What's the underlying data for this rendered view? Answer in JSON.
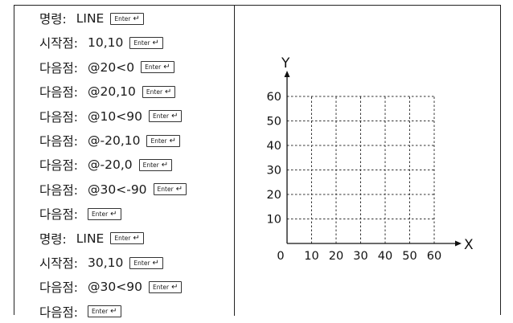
{
  "commands": [
    {
      "label": "명령:",
      "value": "LINE",
      "key": "Enter"
    },
    {
      "label": "시작점:",
      "value": "10,10",
      "key": "Enter"
    },
    {
      "label": "다음점:",
      "value": "@20<0",
      "key": "Enter"
    },
    {
      "label": "다음점:",
      "value": "@20,10",
      "key": "Enter"
    },
    {
      "label": "다음점:",
      "value": "@10<90",
      "key": "Enter"
    },
    {
      "label": "다음점:",
      "value": "@-20,10",
      "key": "Enter"
    },
    {
      "label": "다음점:",
      "value": "@-20,0",
      "key": "Enter"
    },
    {
      "label": "다음점:",
      "value": "@30<-90",
      "key": "Enter"
    },
    {
      "label": "다음점:",
      "value": "",
      "key": "Enter"
    },
    {
      "label": "명령:",
      "value": "LINE",
      "key": "Enter"
    },
    {
      "label": "시작점:",
      "value": "30,10",
      "key": "Enter"
    },
    {
      "label": "다음점:",
      "value": "@30<90",
      "key": "Enter"
    },
    {
      "label": "다음점:",
      "value": "",
      "key": "Enter"
    }
  ],
  "graph": {
    "x_axis_label": "X",
    "y_axis_label": "Y",
    "x_ticks": [
      "0",
      "10",
      "20",
      "30",
      "40",
      "50",
      "60"
    ],
    "y_ticks": [
      "10",
      "20",
      "30",
      "40",
      "50",
      "60"
    ],
    "grid_style": "dashed",
    "range": [
      0,
      60
    ]
  }
}
